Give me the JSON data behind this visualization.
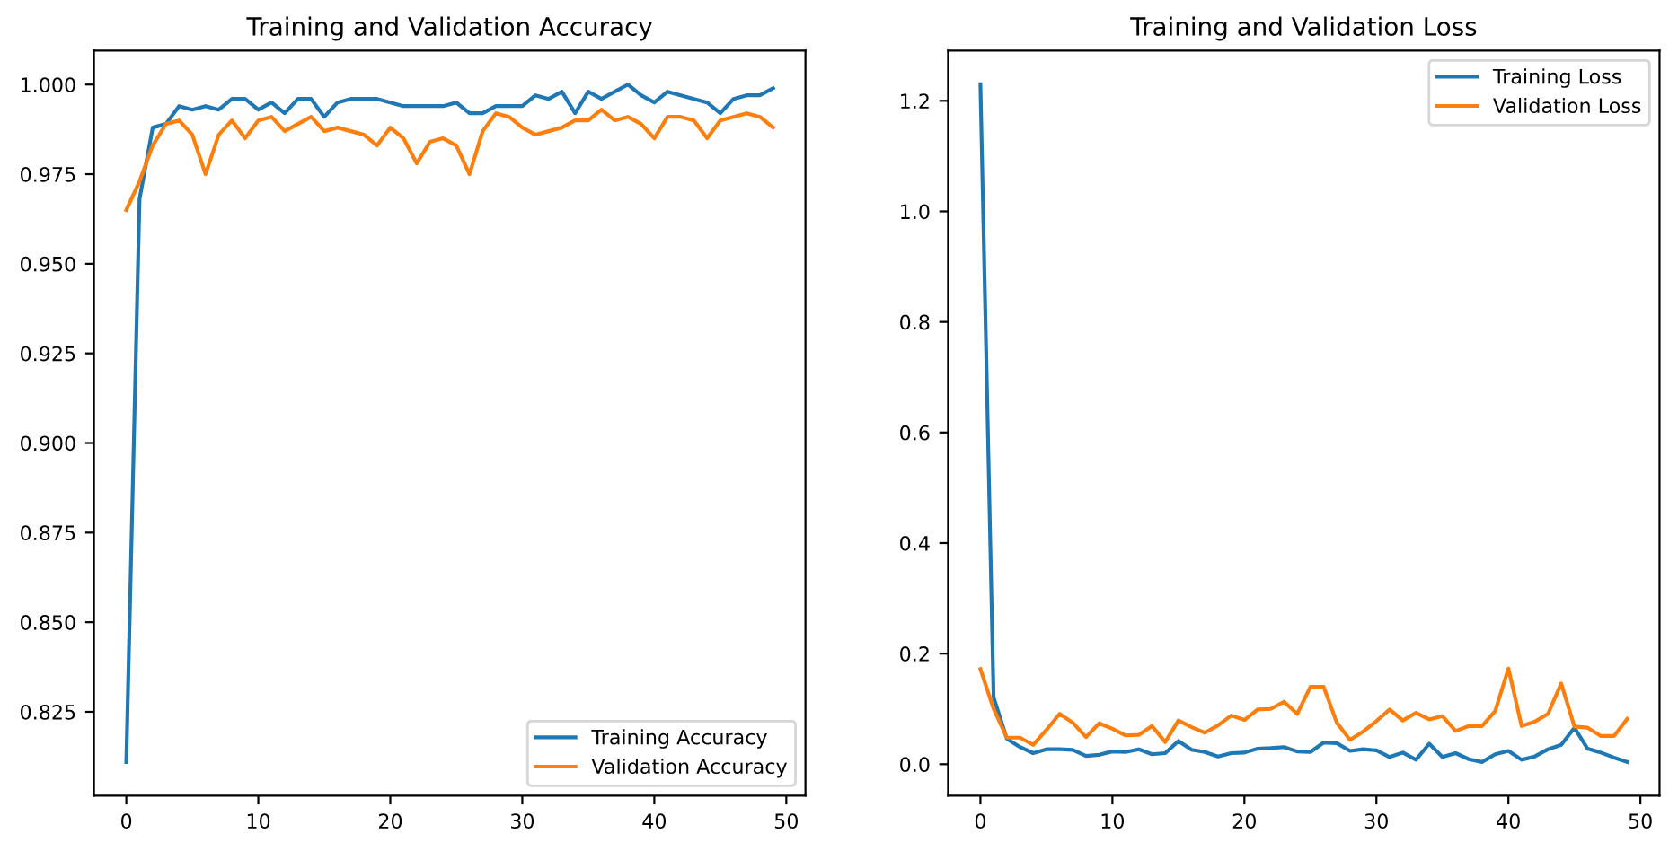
{
  "chart_data": [
    {
      "type": "line",
      "title": "Training and Validation Accuracy",
      "x": [
        0,
        1,
        2,
        3,
        4,
        5,
        6,
        7,
        8,
        9,
        10,
        11,
        12,
        13,
        14,
        15,
        16,
        17,
        18,
        19,
        20,
        21,
        22,
        23,
        24,
        25,
        26,
        27,
        28,
        29,
        30,
        31,
        32,
        33,
        34,
        35,
        36,
        37,
        38,
        39,
        40,
        41,
        42,
        43,
        44,
        45,
        46,
        47,
        48,
        49
      ],
      "series": [
        {
          "name": "Training Accuracy",
          "color": "#1f77b4",
          "values": [
            0.811,
            0.968,
            0.988,
            0.989,
            0.994,
            0.993,
            0.994,
            0.993,
            0.996,
            0.996,
            0.993,
            0.995,
            0.992,
            0.996,
            0.996,
            0.991,
            0.995,
            0.996,
            0.996,
            0.996,
            0.995,
            0.994,
            0.994,
            0.994,
            0.994,
            0.995,
            0.992,
            0.992,
            0.994,
            0.994,
            0.994,
            0.997,
            0.996,
            0.998,
            0.992,
            0.998,
            0.996,
            0.998,
            1.0,
            0.997,
            0.995,
            0.998,
            0.997,
            0.996,
            0.995,
            0.992,
            0.996,
            0.997,
            0.997,
            0.999
          ]
        },
        {
          "name": "Validation Accuracy",
          "color": "#ff7f0e",
          "values": [
            0.965,
            0.973,
            0.983,
            0.989,
            0.99,
            0.986,
            0.975,
            0.986,
            0.99,
            0.985,
            0.99,
            0.991,
            0.987,
            0.989,
            0.991,
            0.987,
            0.988,
            0.987,
            0.986,
            0.983,
            0.988,
            0.985,
            0.978,
            0.984,
            0.985,
            0.983,
            0.975,
            0.987,
            0.992,
            0.991,
            0.988,
            0.986,
            0.987,
            0.988,
            0.99,
            0.99,
            0.993,
            0.99,
            0.991,
            0.989,
            0.985,
            0.991,
            0.991,
            0.99,
            0.985,
            0.99,
            0.991,
            0.992,
            0.991,
            0.988
          ]
        }
      ],
      "xlim": [
        -2.45,
        51.45
      ],
      "ylim": [
        0.8016,
        1.0095
      ],
      "xticks": [
        0,
        10,
        20,
        30,
        40,
        50
      ],
      "yticks": [
        {
          "value": 0.825,
          "label": "0.825"
        },
        {
          "value": 0.85,
          "label": "0.850"
        },
        {
          "value": 0.875,
          "label": "0.875"
        },
        {
          "value": 0.9,
          "label": "0.900"
        },
        {
          "value": 0.925,
          "label": "0.925"
        },
        {
          "value": 0.95,
          "label": "0.950"
        },
        {
          "value": 0.975,
          "label": "0.975"
        },
        {
          "value": 1.0,
          "label": "1.000"
        }
      ],
      "legend": "bottom right",
      "grid": false,
      "marker": "none",
      "line_style": "solid"
    },
    {
      "type": "line",
      "title": "Training and Validation Loss",
      "x": [
        0,
        1,
        2,
        3,
        4,
        5,
        6,
        7,
        8,
        9,
        10,
        11,
        12,
        13,
        14,
        15,
        16,
        17,
        18,
        19,
        20,
        21,
        22,
        23,
        24,
        25,
        26,
        27,
        28,
        29,
        30,
        31,
        32,
        33,
        34,
        35,
        36,
        37,
        38,
        39,
        40,
        41,
        42,
        43,
        44,
        45,
        46,
        47,
        48,
        49
      ],
      "series": [
        {
          "name": "Training Loss",
          "color": "#1f77b4",
          "values": [
            1.23,
            0.121,
            0.046,
            0.031,
            0.02,
            0.027,
            0.027,
            0.026,
            0.015,
            0.017,
            0.023,
            0.022,
            0.027,
            0.018,
            0.02,
            0.042,
            0.026,
            0.022,
            0.014,
            0.02,
            0.021,
            0.028,
            0.029,
            0.031,
            0.023,
            0.022,
            0.039,
            0.038,
            0.024,
            0.027,
            0.025,
            0.013,
            0.021,
            0.008,
            0.037,
            0.013,
            0.02,
            0.009,
            0.004,
            0.018,
            0.024,
            0.008,
            0.014,
            0.027,
            0.035,
            0.066,
            0.028,
            0.021,
            0.012,
            0.004
          ]
        },
        {
          "name": "Validation Loss",
          "color": "#ff7f0e",
          "values": [
            0.172,
            0.1,
            0.048,
            0.048,
            0.035,
            0.062,
            0.091,
            0.075,
            0.049,
            0.074,
            0.064,
            0.052,
            0.053,
            0.069,
            0.04,
            0.079,
            0.067,
            0.057,
            0.07,
            0.088,
            0.08,
            0.099,
            0.1,
            0.113,
            0.091,
            0.14,
            0.14,
            0.075,
            0.044,
            0.059,
            0.078,
            0.099,
            0.079,
            0.093,
            0.081,
            0.087,
            0.06,
            0.069,
            0.069,
            0.096,
            0.173,
            0.069,
            0.077,
            0.091,
            0.146,
            0.068,
            0.066,
            0.051,
            0.051,
            0.082
          ]
        }
      ],
      "xlim": [
        -2.45,
        51.45
      ],
      "ylim": [
        -0.057,
        1.291
      ],
      "xticks": [
        0,
        10,
        20,
        30,
        40,
        50
      ],
      "yticks": [
        {
          "value": 0.0,
          "label": "0.0"
        },
        {
          "value": 0.2,
          "label": "0.2"
        },
        {
          "value": 0.4,
          "label": "0.4"
        },
        {
          "value": 0.6,
          "label": "0.6"
        },
        {
          "value": 0.8,
          "label": "0.8"
        },
        {
          "value": 1.0,
          "label": "1.0"
        },
        {
          "value": 1.2,
          "label": "1.2"
        }
      ],
      "legend": "top right",
      "grid": false,
      "marker": "none",
      "line_style": "solid"
    }
  ]
}
